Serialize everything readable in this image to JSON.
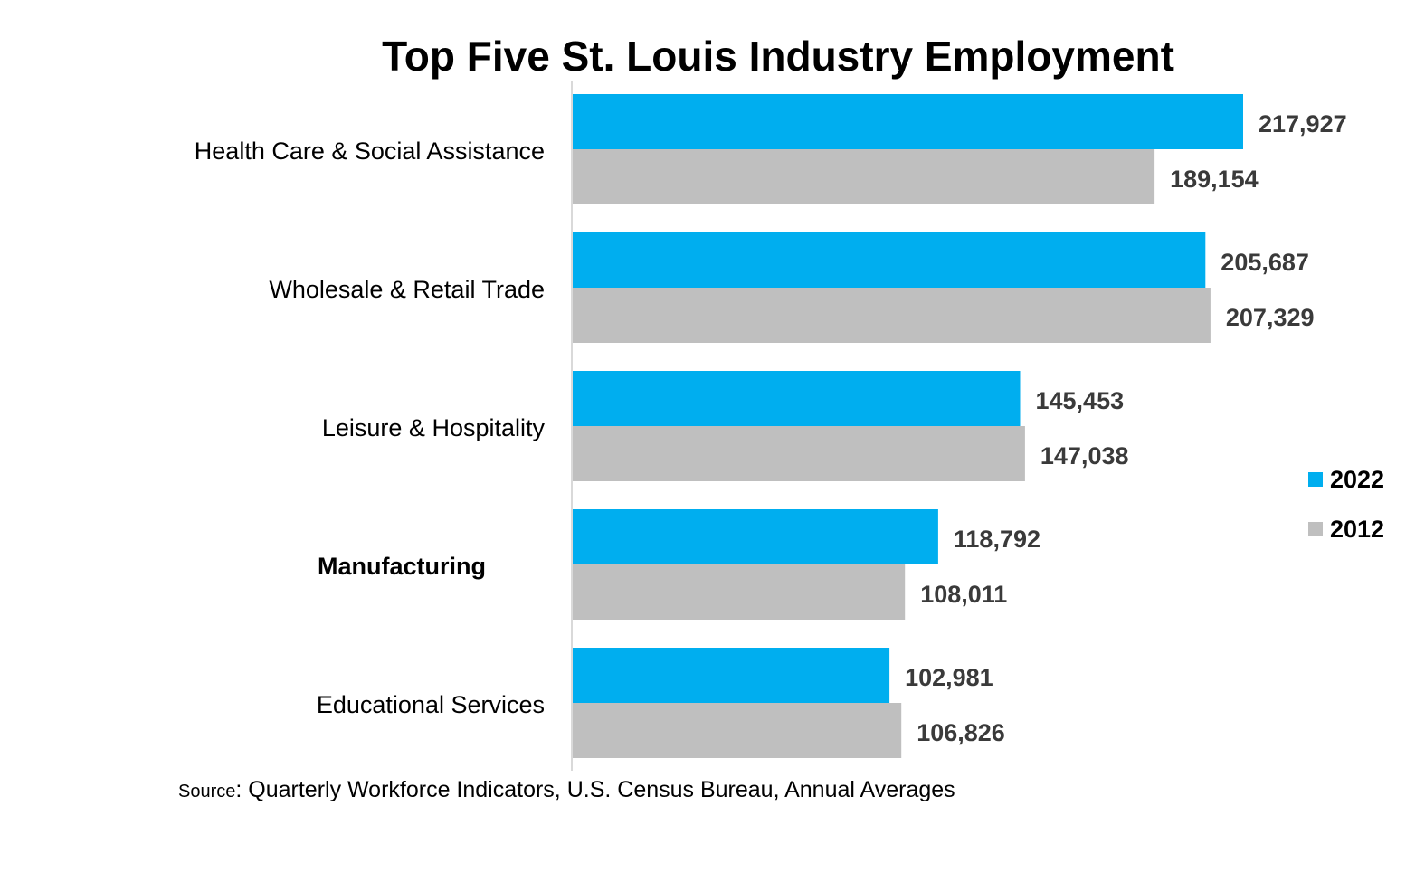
{
  "chart_data": {
    "type": "bar",
    "orientation": "horizontal",
    "title": "Top Five St. Louis Industry Employment",
    "categories": [
      "Health Care & Social Assistance",
      "Wholesale & Retail Trade",
      "Leisure & Hospitality",
      "Manufacturing",
      "Educational Services"
    ],
    "bold_categories": [
      "Manufacturing"
    ],
    "series": [
      {
        "name": "2022",
        "color": "#00aeef",
        "values": [
          217927,
          205687,
          145453,
          118792,
          102981
        ],
        "labels": [
          "217,927",
          "205,687",
          "145,453",
          "118,792",
          "102,981"
        ]
      },
      {
        "name": "2012",
        "color": "#bfbfbf",
        "values": [
          189154,
          207329,
          147038,
          108011,
          106826
        ],
        "labels": [
          "189,154",
          "207,329",
          "147,038",
          "108,011",
          "106,826"
        ]
      }
    ],
    "xlim": [
      0,
      250000
    ],
    "xlabel": "",
    "ylabel": "",
    "grid": false,
    "legend": "right",
    "source_prefix": "Source",
    "source_text": ": Quarterly Workforce Indicators, U.S. Census Bureau, Annual Averages"
  }
}
